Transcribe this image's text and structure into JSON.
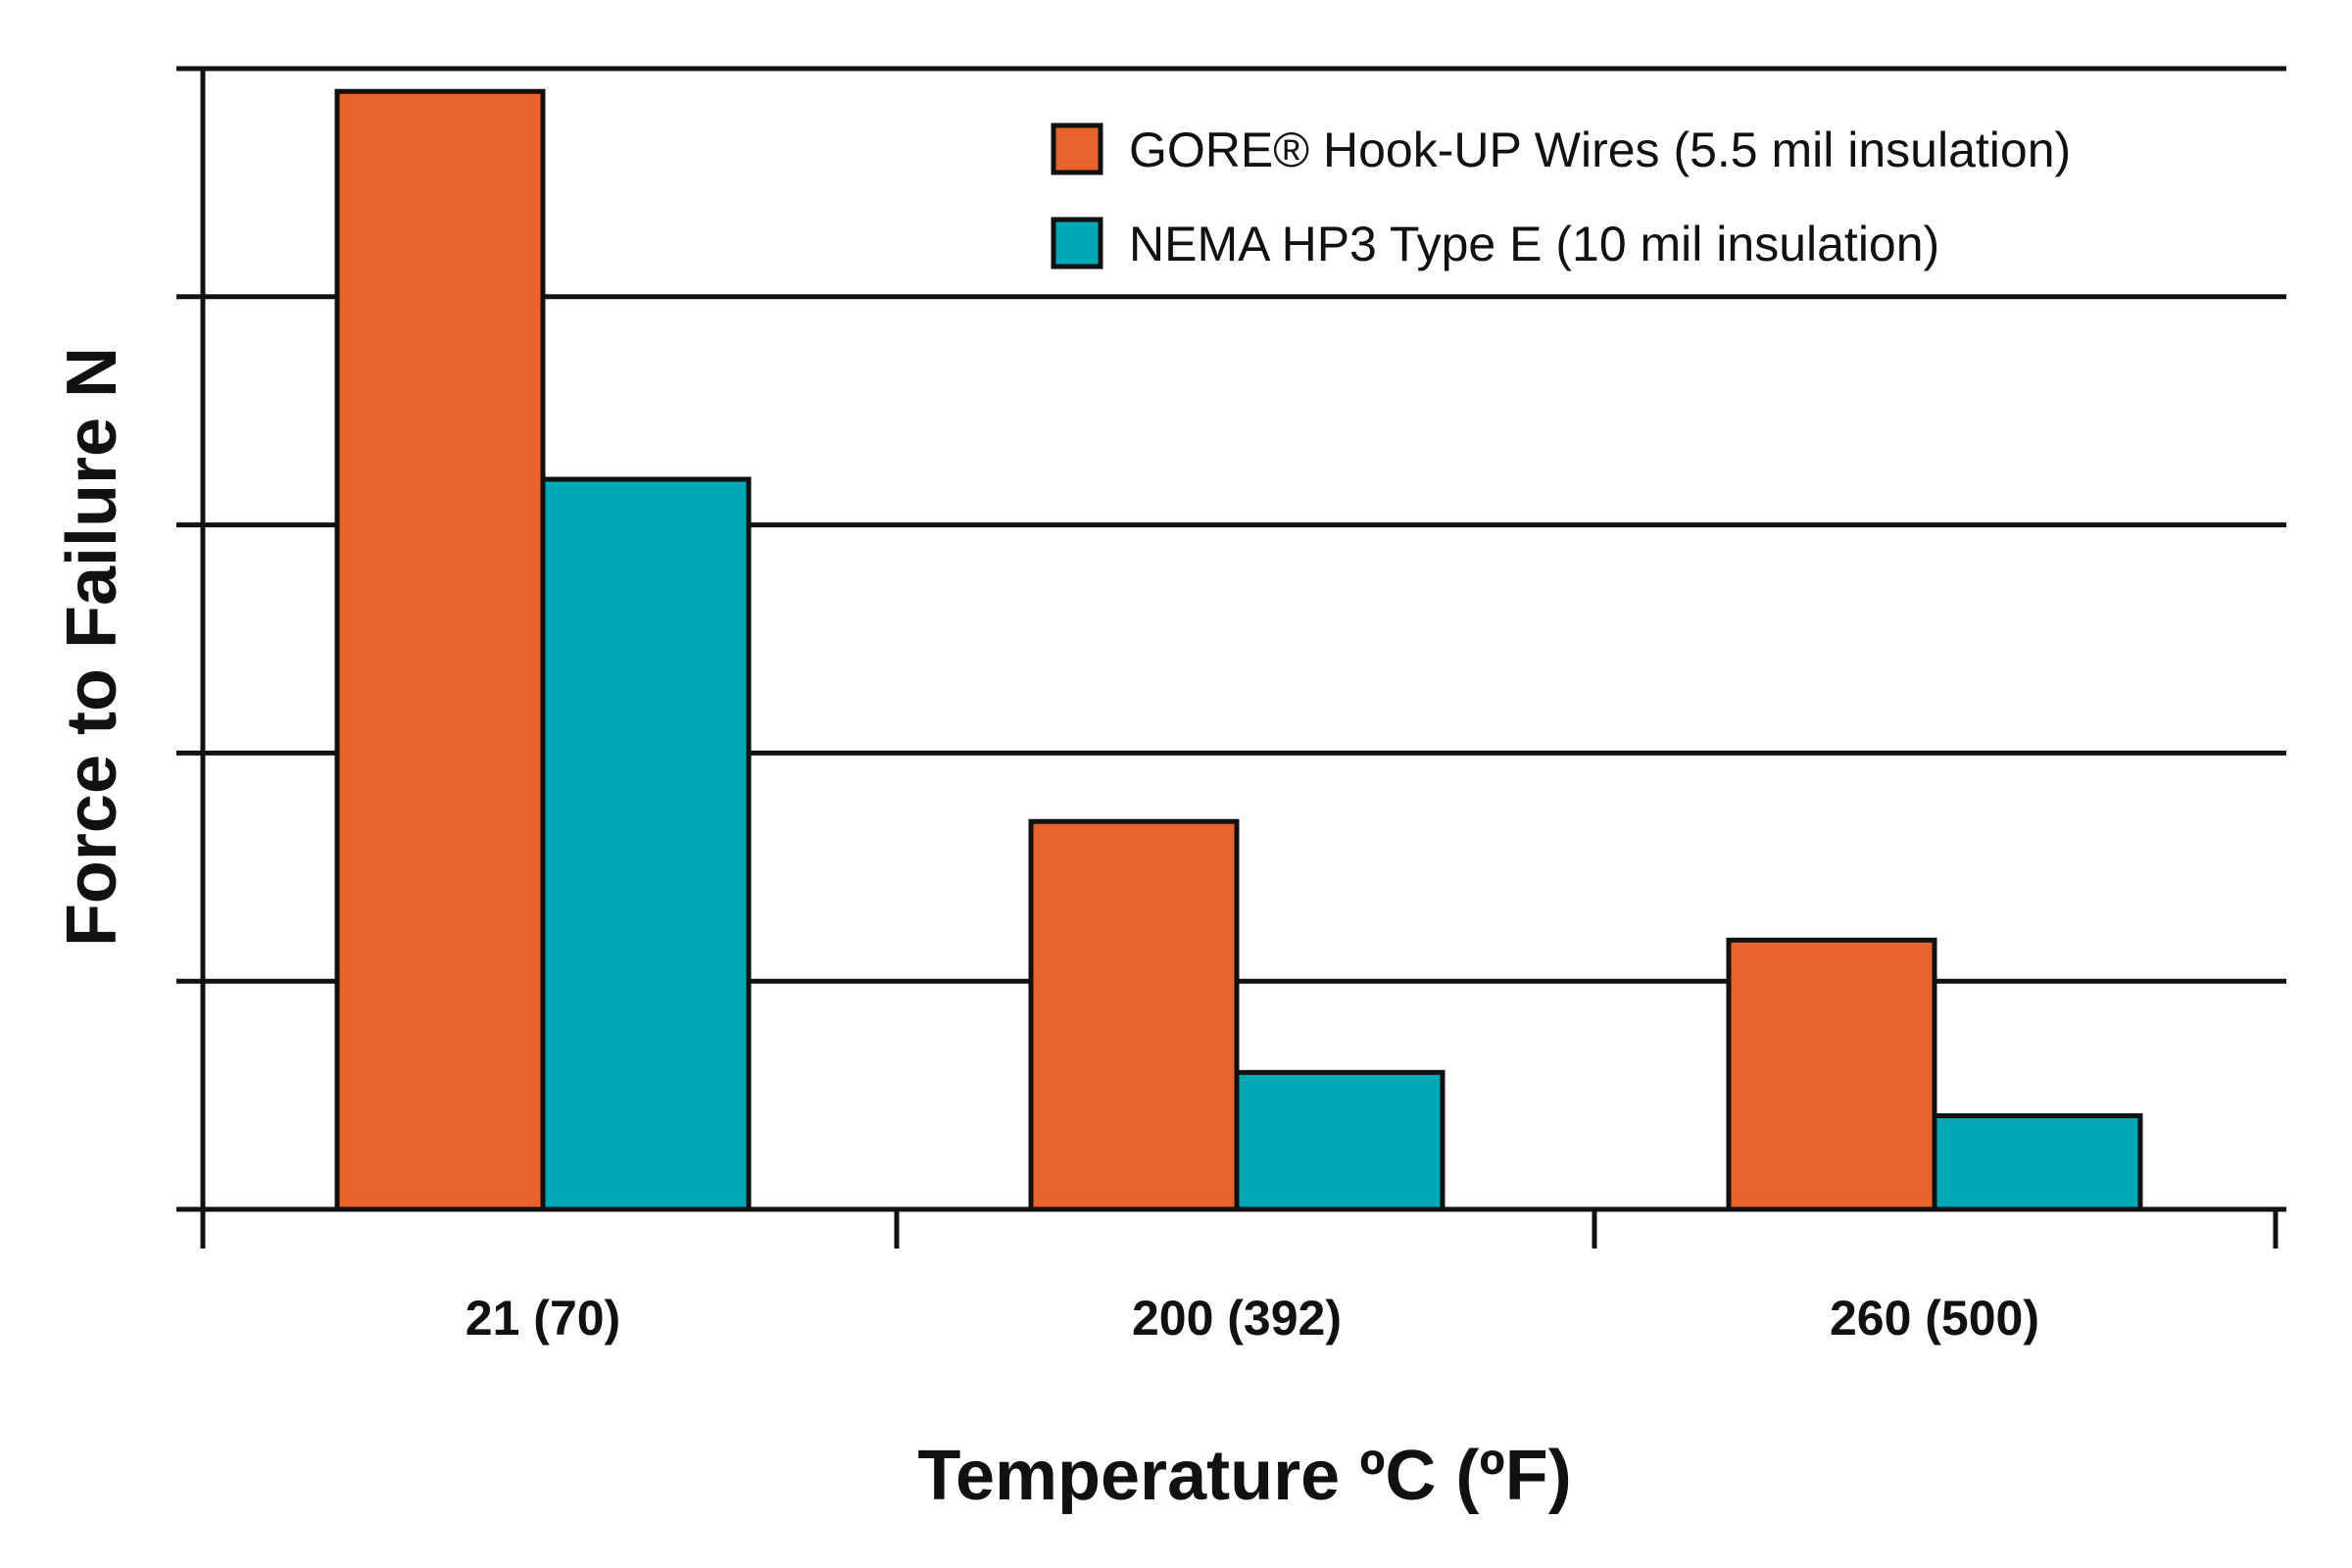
{
  "chart_data": {
    "type": "bar",
    "categories": [
      "21 (70)",
      "200 (392)",
      "260 (500)"
    ],
    "series": [
      {
        "name": "GORE® Hook-UP Wires (5.5 mil insulation)",
        "values": [
          4.9,
          1.7,
          1.18
        ],
        "color": "#E8642C"
      },
      {
        "name": "NEMA HP3 Type E (10 mil insulation)",
        "values": [
          3.2,
          0.6,
          0.41
        ],
        "color": "#00A8B5"
      }
    ],
    "xlabel": "Temperature ºC (ºF)",
    "ylabel": "Force to Failure N",
    "ylim": [
      0,
      5
    ],
    "y_gridlines": [
      1,
      2,
      3,
      4,
      5
    ],
    "grid": true,
    "legend": "top-right"
  }
}
